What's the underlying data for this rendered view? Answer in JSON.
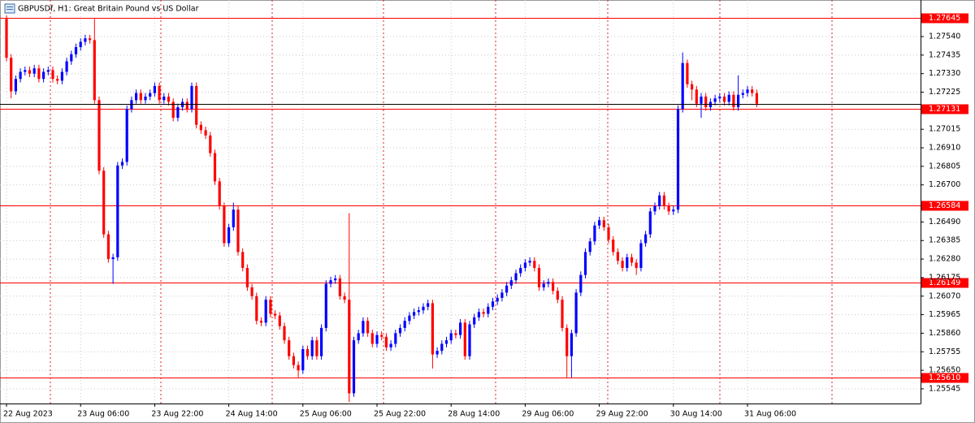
{
  "chart_data": {
    "type": "candlestick",
    "title": "GBPUSDf, H1:  Great Britain Pound vs US Dollar",
    "categories": [
      "22 Aug 2023",
      null,
      null,
      null,
      null,
      null,
      null,
      null,
      null,
      null,
      null,
      null,
      null,
      null,
      null,
      null,
      "23 Aug 06:00",
      null,
      null,
      null,
      null,
      null,
      null,
      null,
      null,
      null,
      null,
      null,
      null,
      null,
      null,
      null,
      "23 Aug 22:00",
      null,
      null,
      null,
      null,
      null,
      null,
      null,
      null,
      null,
      null,
      null,
      null,
      null,
      null,
      null,
      "24 Aug 14:00",
      null,
      null,
      null,
      null,
      null,
      null,
      null,
      null,
      null,
      null,
      null,
      null,
      null,
      null,
      null,
      "25 Aug 06:00",
      null,
      null,
      null,
      null,
      null,
      null,
      null,
      null,
      null,
      null,
      null,
      null,
      null,
      null,
      null,
      "25 Aug 22:00",
      null,
      null,
      null,
      null,
      null,
      null,
      null,
      null,
      null,
      null,
      null,
      null,
      null,
      null,
      null,
      "28 Aug 14:00",
      null,
      null,
      null,
      null,
      null,
      null,
      null,
      null,
      null,
      null,
      null,
      null,
      null,
      null,
      null,
      "29 Aug 06:00",
      null,
      null,
      null,
      null,
      null,
      null,
      null,
      null,
      null,
      null,
      null,
      null,
      null,
      null,
      null,
      "29 Aug 22:00",
      null,
      null,
      null,
      null,
      null,
      null,
      null,
      null,
      null,
      null,
      null,
      null,
      null,
      null,
      null,
      "30 Aug 14:00",
      null,
      null,
      null,
      null,
      null,
      null,
      null,
      null,
      null,
      null,
      null,
      null,
      null,
      null,
      null,
      "31 Aug 06:00",
      null,
      null
    ],
    "open": [
      1.2764,
      1.2742,
      1.2723,
      1.273,
      1.2734,
      1.2735,
      1.2733,
      1.2736,
      1.273,
      1.2734,
      1.2735,
      1.273,
      1.2729,
      1.2734,
      1.274,
      1.2744,
      1.2748,
      1.2751,
      1.2753,
      1.2752,
      1.2718,
      1.2678,
      1.2642,
      1.2628,
      1.2629,
      1.2681,
      1.2683,
      1.2713,
      1.2718,
      1.2722,
      1.2718,
      1.272,
      1.2722,
      1.2726,
      1.2718,
      1.272,
      1.2717,
      1.2708,
      1.2714,
      1.2717,
      1.2713,
      1.2726,
      1.2704,
      1.2701,
      1.2698,
      1.2688,
      1.2672,
      1.2658,
      1.2637,
      1.2646,
      1.2656,
      1.2632,
      1.2623,
      1.2612,
      1.2607,
      1.2593,
      1.2592,
      1.2605,
      1.2597,
      1.2596,
      1.259,
      1.2582,
      1.2573,
      1.2568,
      1.2565,
      1.2577,
      1.2573,
      1.2582,
      1.2573,
      1.2589,
      1.2614,
      1.2616,
      1.2617,
      1.2607,
      1.2605,
      1.2552,
      1.2582,
      1.2586,
      1.2593,
      1.2586,
      1.258,
      1.2585,
      1.2584,
      1.2578,
      1.258,
      1.2586,
      1.2589,
      1.2593,
      1.2596,
      1.2598,
      1.2599,
      1.2601,
      1.2603,
      1.2574,
      1.2576,
      1.258,
      1.2582,
      1.2586,
      1.2585,
      1.2592,
      1.2573,
      1.2591,
      1.2595,
      1.2598,
      1.2597,
      1.2601,
      1.2604,
      1.2606,
      1.2609,
      1.2613,
      1.2616,
      1.262,
      1.2623,
      1.2626,
      1.2627,
      1.2623,
      1.2612,
      1.2614,
      1.2615,
      1.261,
      1.2605,
      1.2589,
      1.2573,
      1.2586,
      1.2609,
      1.2619,
      1.2632,
      1.2638,
      1.2647,
      1.265,
      1.2646,
      1.2639,
      1.2632,
      1.2627,
      1.2623,
      1.2629,
      1.2626,
      1.2623,
      1.2637,
      1.2642,
      1.2655,
      1.2658,
      1.2664,
      1.2658,
      1.2655,
      1.2656,
      1.2713,
      1.2739,
      1.2727,
      1.2724,
      1.2716,
      1.272,
      1.2714,
      1.2717,
      1.2719,
      1.272,
      1.2717,
      1.2721,
      1.2714,
      1.2721,
      1.2722,
      1.2724,
      1.2722
    ],
    "high": [
      1.2766,
      1.2744,
      1.2732,
      1.2736,
      1.2737,
      1.2737,
      1.2738,
      1.2738,
      1.2736,
      1.2737,
      1.2737,
      1.2732,
      1.2736,
      1.2742,
      1.2746,
      1.275,
      1.2753,
      1.2755,
      1.2755,
      1.2764,
      1.272,
      1.268,
      1.2644,
      1.2631,
      1.2683,
      1.2685,
      1.2715,
      1.272,
      1.2724,
      1.2724,
      1.2722,
      1.2724,
      1.2728,
      1.2728,
      1.2722,
      1.2722,
      1.2719,
      1.2716,
      1.2719,
      1.2719,
      1.2728,
      1.2728,
      1.2706,
      1.2703,
      1.27,
      1.269,
      1.2674,
      1.266,
      1.2648,
      1.266,
      1.2658,
      1.2634,
      1.2625,
      1.2614,
      1.2609,
      1.2595,
      1.2607,
      1.2607,
      1.2599,
      1.2598,
      1.2592,
      1.2584,
      1.2575,
      1.257,
      1.2579,
      1.2579,
      1.2584,
      1.2584,
      1.2591,
      1.2616,
      1.2618,
      1.2619,
      1.2619,
      1.2609,
      1.2654,
      1.2584,
      1.2588,
      1.2595,
      1.2595,
      1.2588,
      1.2587,
      1.2587,
      1.2586,
      1.2582,
      1.2588,
      1.2591,
      1.2595,
      1.2598,
      1.26,
      1.2601,
      1.2603,
      1.2605,
      1.2605,
      1.2578,
      1.2582,
      1.2584,
      1.2588,
      1.2588,
      1.2594,
      1.2594,
      1.2593,
      1.2597,
      1.26,
      1.26,
      1.2603,
      1.2606,
      1.2608,
      1.2611,
      1.2615,
      1.2618,
      1.2622,
      1.2625,
      1.2628,
      1.2629,
      1.2629,
      1.2625,
      1.2616,
      1.2617,
      1.2617,
      1.2612,
      1.2607,
      1.2591,
      1.2588,
      1.2611,
      1.2621,
      1.2634,
      1.264,
      1.2649,
      1.2652,
      1.2652,
      1.2648,
      1.2641,
      1.2634,
      1.2629,
      1.2631,
      1.2631,
      1.2628,
      1.2639,
      1.2644,
      1.2657,
      1.266,
      1.2666,
      1.2666,
      1.266,
      1.2658,
      1.2715,
      1.2745,
      1.2741,
      1.2729,
      1.2726,
      1.2722,
      1.2722,
      1.2719,
      1.2721,
      1.2722,
      1.2722,
      1.2723,
      1.2723,
      1.2732,
      1.2724,
      1.2726,
      1.2726,
      1.2724
    ],
    "low": [
      1.274,
      1.2719,
      1.2721,
      1.2728,
      1.2732,
      1.2731,
      1.2731,
      1.2728,
      1.2728,
      1.2732,
      1.2728,
      1.2727,
      1.2727,
      1.2732,
      1.2738,
      1.2742,
      1.2746,
      1.2749,
      1.275,
      1.2716,
      1.2676,
      1.264,
      1.2626,
      1.2614,
      1.2627,
      1.2679,
      1.2681,
      1.2711,
      1.2716,
      1.2716,
      1.2716,
      1.2718,
      1.272,
      1.2716,
      1.2716,
      1.2715,
      1.2706,
      1.2706,
      1.2712,
      1.2711,
      1.2711,
      1.2702,
      1.2699,
      1.2696,
      1.2686,
      1.267,
      1.2656,
      1.2635,
      1.2635,
      1.2644,
      1.263,
      1.2621,
      1.261,
      1.2605,
      1.2591,
      1.259,
      1.259,
      1.2595,
      1.2594,
      1.2588,
      1.258,
      1.2571,
      1.2566,
      1.2561,
      1.2563,
      1.2571,
      1.2571,
      1.2571,
      1.2571,
      1.2587,
      1.2612,
      1.2614,
      1.2605,
      1.2603,
      1.2547,
      1.255,
      1.258,
      1.2584,
      1.2584,
      1.2578,
      1.2578,
      1.2582,
      1.2576,
      1.2576,
      1.2578,
      1.2584,
      1.2587,
      1.2591,
      1.2594,
      1.2596,
      1.2597,
      1.2599,
      1.2566,
      1.2572,
      1.2574,
      1.2578,
      1.258,
      1.2583,
      1.2583,
      1.2571,
      1.2571,
      1.2589,
      1.2593,
      1.2595,
      1.2595,
      1.2599,
      1.2602,
      1.2604,
      1.2607,
      1.2611,
      1.2614,
      1.2618,
      1.2621,
      1.2624,
      1.2621,
      1.261,
      1.261,
      1.2612,
      1.2608,
      1.2603,
      1.2587,
      1.2561,
      1.2561,
      1.2584,
      1.2607,
      1.2617,
      1.263,
      1.2636,
      1.2645,
      1.2644,
      1.2637,
      1.263,
      1.2625,
      1.2621,
      1.2621,
      1.2624,
      1.2619,
      1.2621,
      1.2635,
      1.264,
      1.2653,
      1.2656,
      1.2656,
      1.2653,
      1.2653,
      1.2654,
      1.2711,
      1.2725,
      1.2718,
      1.2714,
      1.2708,
      1.2712,
      1.2712,
      1.2715,
      1.2717,
      1.2715,
      1.2715,
      1.2712,
      1.2712,
      1.2719,
      1.272,
      1.272,
      1.2714
    ],
    "close": [
      1.2742,
      1.2723,
      1.273,
      1.2734,
      1.2735,
      1.2733,
      1.2736,
      1.273,
      1.2734,
      1.2735,
      1.273,
      1.2729,
      1.2734,
      1.274,
      1.2744,
      1.2748,
      1.2751,
      1.2753,
      1.2752,
      1.2718,
      1.2678,
      1.2642,
      1.2628,
      1.2629,
      1.2681,
      1.2683,
      1.2713,
      1.2718,
      1.2722,
      1.2718,
      1.272,
      1.2722,
      1.2726,
      1.2718,
      1.272,
      1.2717,
      1.2708,
      1.2714,
      1.2717,
      1.2713,
      1.2726,
      1.2704,
      1.2701,
      1.2698,
      1.2688,
      1.2672,
      1.2658,
      1.2637,
      1.2646,
      1.2656,
      1.2632,
      1.2623,
      1.2612,
      1.2607,
      1.2593,
      1.2592,
      1.2605,
      1.2597,
      1.2596,
      1.259,
      1.2582,
      1.2573,
      1.2568,
      1.2565,
      1.2577,
      1.2573,
      1.2582,
      1.2573,
      1.2589,
      1.2614,
      1.2616,
      1.2617,
      1.2607,
      1.2605,
      1.2552,
      1.2582,
      1.2586,
      1.2593,
      1.2586,
      1.258,
      1.2585,
      1.2584,
      1.2578,
      1.258,
      1.2586,
      1.2589,
      1.2593,
      1.2596,
      1.2598,
      1.2599,
      1.2601,
      1.2603,
      1.2574,
      1.2576,
      1.258,
      1.2582,
      1.2586,
      1.2585,
      1.2592,
      1.2573,
      1.2591,
      1.2595,
      1.2598,
      1.2597,
      1.2601,
      1.2604,
      1.2606,
      1.2609,
      1.2613,
      1.2616,
      1.262,
      1.2623,
      1.2626,
      1.2627,
      1.2623,
      1.2612,
      1.2614,
      1.2615,
      1.261,
      1.2605,
      1.2589,
      1.2573,
      1.2586,
      1.2609,
      1.2619,
      1.2632,
      1.2638,
      1.2647,
      1.265,
      1.2646,
      1.2639,
      1.2632,
      1.2627,
      1.2623,
      1.2629,
      1.2626,
      1.2623,
      1.2637,
      1.2642,
      1.2655,
      1.2658,
      1.2664,
      1.2658,
      1.2655,
      1.2656,
      1.2713,
      1.2739,
      1.2727,
      1.2724,
      1.2716,
      1.272,
      1.2714,
      1.2717,
      1.2719,
      1.272,
      1.2717,
      1.2721,
      1.2714,
      1.2721,
      1.2722,
      1.2724,
      1.2722,
      1.2716
    ],
    "up_color": "#0000ff",
    "down_color": "#ff0000",
    "ylim": [
      1.25462,
      1.27747
    ],
    "yticks": [
      {
        "value": 1.2754,
        "label": "1.27540"
      },
      1.27435,
      {
        "value": 1.2733,
        "label": "1.27330"
      },
      1.27225,
      1.27015,
      {
        "value": 1.2691,
        "label": "1.26910"
      },
      1.26805,
      {
        "value": 1.267,
        "label": "1.26700"
      },
      {
        "value": 1.2649,
        "label": "1.26490"
      },
      1.26385,
      {
        "value": 1.2628,
        "label": "1.26280"
      },
      1.26175,
      {
        "value": 1.2607,
        "label": "1.26070"
      },
      1.25965,
      {
        "value": 1.2586,
        "label": "1.25860"
      },
      1.25755,
      {
        "value": 1.2565,
        "label": "1.25650"
      },
      1.25545
    ],
    "levels": [
      1.27645,
      1.27131,
      1.26584,
      1.26149,
      {
        "value": 1.2561,
        "label": "1.25610"
      }
    ],
    "level_color": "#ff0000",
    "grid": true
  }
}
